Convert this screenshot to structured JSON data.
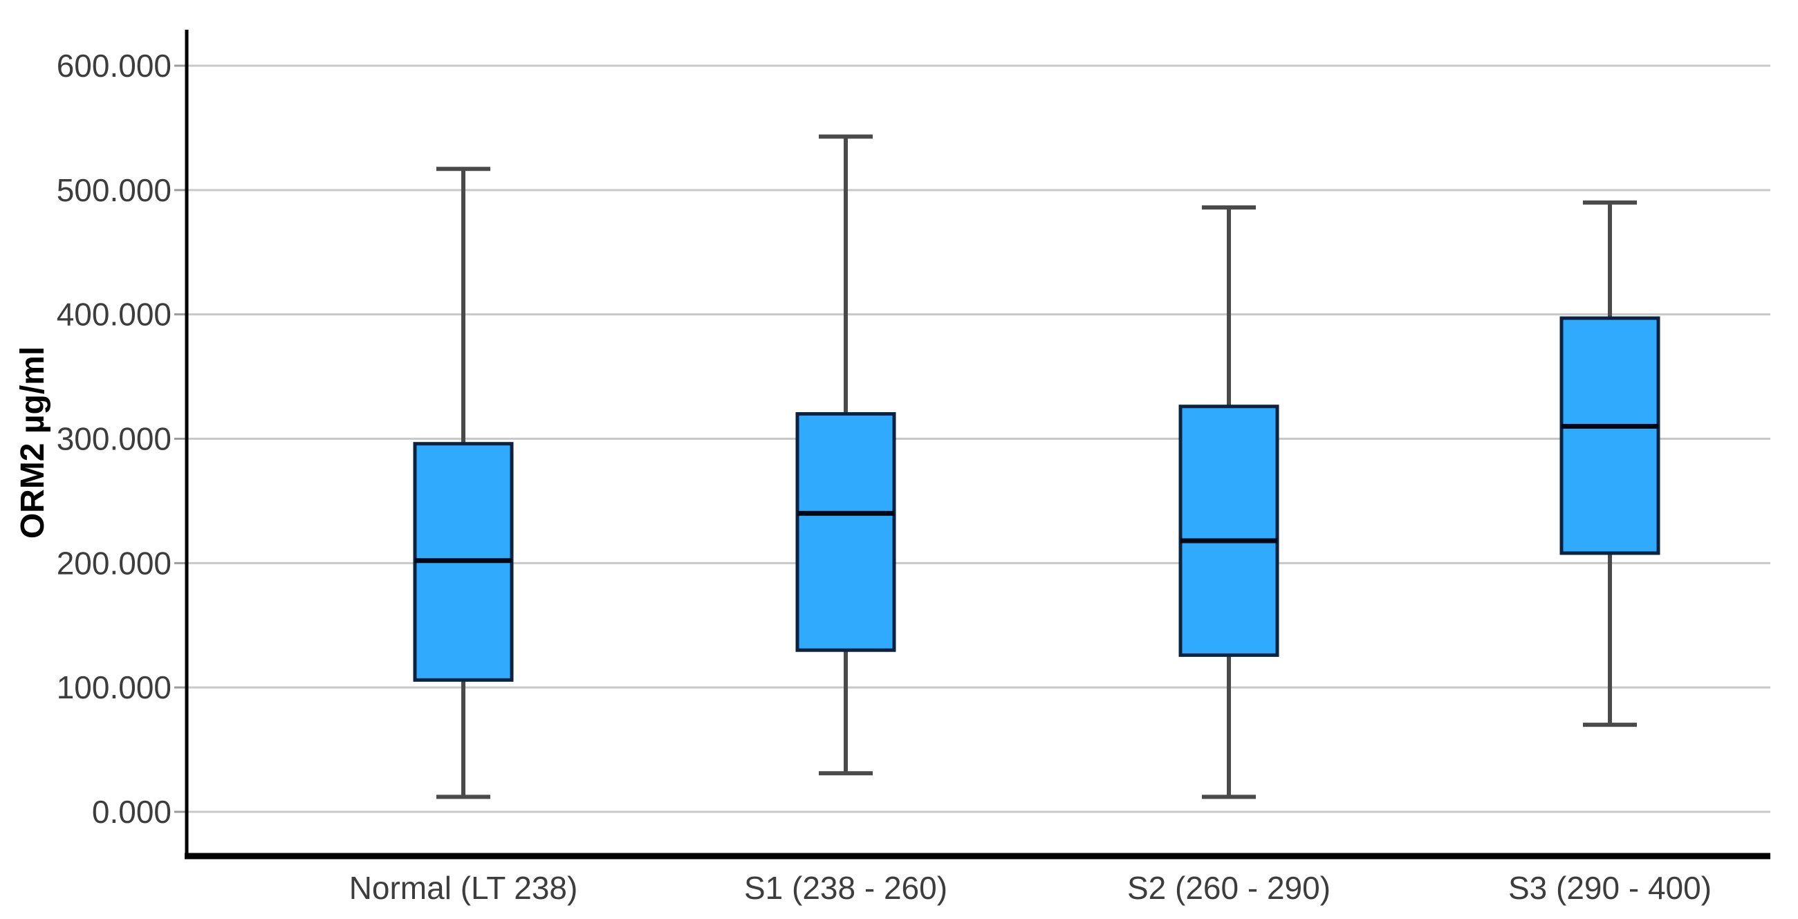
{
  "chart_data": {
    "type": "box",
    "title": "",
    "xlabel": "",
    "ylabel": "ORM2 µg/ml",
    "ylim": [
      0,
      600
    ],
    "grid": "horizontal",
    "legend": "none",
    "y_ticks": [
      {
        "value": 0,
        "label": "0.000"
      },
      {
        "value": 100,
        "label": "100.000"
      },
      {
        "value": 200,
        "label": "200.000"
      },
      {
        "value": 300,
        "label": "300.000"
      },
      {
        "value": 400,
        "label": "400.000"
      },
      {
        "value": 500,
        "label": "500.000"
      },
      {
        "value": 600,
        "label": "600.000"
      }
    ],
    "categories": [
      "Normal (LT 238)",
      "S1 (238 - 260)",
      "S2 (260 - 290)",
      "S3 (290 - 400)"
    ],
    "series": [
      {
        "category": "Normal (LT 238)",
        "whisker_low": 12,
        "q1": 106,
        "median": 202,
        "q3": 296,
        "whisker_high": 517
      },
      {
        "category": "S1 (238 - 260)",
        "whisker_low": 31,
        "q1": 130,
        "median": 240,
        "q3": 320,
        "whisker_high": 543
      },
      {
        "category": "S2 (260 - 290)",
        "whisker_low": 12,
        "q1": 126,
        "median": 218,
        "q3": 326,
        "whisker_high": 486
      },
      {
        "category": "S3 (290 - 400)",
        "whisker_low": 70,
        "q1": 208,
        "median": 310,
        "q3": 397,
        "whisker_high": 490
      }
    ],
    "colors": {
      "box_fill": "#2FAAFC",
      "box_border": "#0B2240",
      "median_line": "#000714",
      "whisker": "#4A4A4A",
      "gridline": "#C8C8C8",
      "axis": "#000000",
      "tick_mark": "#9B9B9B",
      "tick_text": "#3D3D3D",
      "background": "#FFFFFF"
    }
  }
}
